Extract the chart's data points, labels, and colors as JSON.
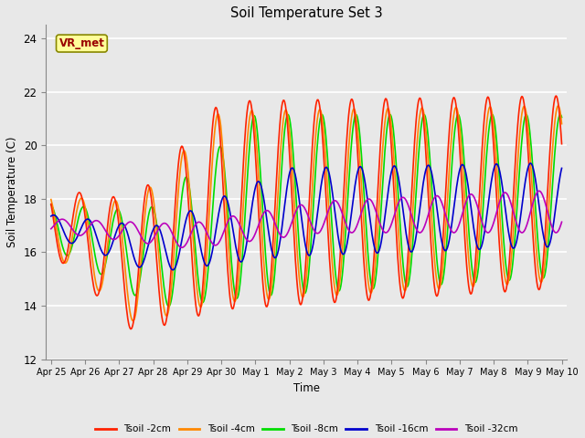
{
  "title": "Soil Temperature Set 3",
  "xlabel": "Time",
  "ylabel": "Soil Temperature (C)",
  "ylim": [
    12,
    24.5
  ],
  "yticks": [
    12,
    14,
    16,
    18,
    20,
    22,
    24
  ],
  "plot_bg_color": "#e8e8e8",
  "grid_color": "#ffffff",
  "series_colors": {
    "Tsoil -2cm": "#ff2200",
    "Tsoil -4cm": "#ff8800",
    "Tsoil -8cm": "#00dd00",
    "Tsoil -16cm": "#0000cc",
    "Tsoil -32cm": "#bb00bb"
  },
  "x_tick_labels": [
    "Apr 25",
    "Apr 26",
    "Apr 27",
    "Apr 28",
    "Apr 29",
    "Apr 30",
    "May 1",
    "May 2",
    "May 3",
    "May 4",
    "May 5",
    "May 6",
    "May 7",
    "May 8",
    "May 9",
    "May 10"
  ],
  "annotation_text": "VR_met"
}
